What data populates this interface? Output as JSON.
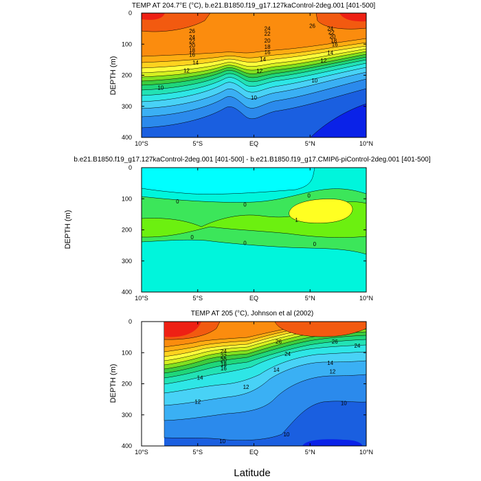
{
  "figure": {
    "xlabel_bottom": "Latitude"
  },
  "chart_data": [
    {
      "type": "heatmap",
      "title": "TEMP AT 204.7°E (°C), b.e21.B1850.f19_g17.127kaControl-2deg.001 [401-500]",
      "ylabel": "DEPTH (m)",
      "xlim": [
        -10,
        10
      ],
      "ylim": [
        400,
        0
      ],
      "xticks": [
        -10,
        -5,
        0,
        5,
        10
      ],
      "xtick_labels": [
        "10°S",
        "5°S",
        "EQ",
        "5°N",
        "10°N"
      ],
      "yticks": [
        0,
        100,
        200,
        300,
        400
      ],
      "ytick_labels": [
        "0",
        "100",
        "200",
        "300",
        "400"
      ],
      "contour_labels": [
        {
          "text": "26",
          "lat": -5.5,
          "depth": 57
        },
        {
          "text": "24",
          "lat": 1.2,
          "depth": 50
        },
        {
          "text": "26",
          "lat": 5.2,
          "depth": 41
        },
        {
          "text": "24",
          "lat": -5.5,
          "depth": 77
        },
        {
          "text": "22",
          "lat": 1.2,
          "depth": 66
        },
        {
          "text": "22",
          "lat": -5.5,
          "depth": 90
        },
        {
          "text": "20",
          "lat": 1.2,
          "depth": 88
        },
        {
          "text": "20",
          "lat": -5.5,
          "depth": 104
        },
        {
          "text": "18",
          "lat": -5.5,
          "depth": 119
        },
        {
          "text": "18",
          "lat": 1.2,
          "depth": 108
        },
        {
          "text": "24",
          "lat": 6.8,
          "depth": 50
        },
        {
          "text": "22",
          "lat": 6.9,
          "depth": 62
        },
        {
          "text": "20",
          "lat": 7.0,
          "depth": 75
        },
        {
          "text": "18",
          "lat": 7.1,
          "depth": 88
        },
        {
          "text": "16",
          "lat": 7.2,
          "depth": 101
        },
        {
          "text": "16",
          "lat": -5.5,
          "depth": 134
        },
        {
          "text": "16",
          "lat": 1.2,
          "depth": 126
        },
        {
          "text": "14",
          "lat": -5.2,
          "depth": 159
        },
        {
          "text": "14",
          "lat": 0.8,
          "depth": 148
        },
        {
          "text": "14",
          "lat": 6.8,
          "depth": 127
        },
        {
          "text": "12",
          "lat": -6.0,
          "depth": 184
        },
        {
          "text": "12",
          "lat": 0.5,
          "depth": 186
        },
        {
          "text": "12",
          "lat": 6.2,
          "depth": 153
        },
        {
          "text": "10",
          "lat": -8.3,
          "depth": 240
        },
        {
          "text": "10",
          "lat": 0.0,
          "depth": 272
        },
        {
          "text": "10",
          "lat": 5.4,
          "depth": 217
        }
      ]
    },
    {
      "type": "heatmap",
      "title": "b.e21.B1850.f19_g17.127kaControl-2deg.001 [401-500] - b.e21.B1850.f19_g17.CMIP6-piControl-2deg.001 [401-500]",
      "ylabel": "DEPTH (m)",
      "xlim": [
        -10,
        10
      ],
      "ylim": [
        400,
        0
      ],
      "xticks": [
        -10,
        -5,
        0,
        5,
        10
      ],
      "xtick_labels": [
        "10°S",
        "5°S",
        "EQ",
        "5°N",
        "10°N"
      ],
      "yticks": [
        0,
        100,
        200,
        300,
        400
      ],
      "ytick_labels": [
        "0",
        "100",
        "200",
        "300",
        "400"
      ],
      "contour_labels": [
        {
          "text": "0",
          "lat": -6.8,
          "depth": 108
        },
        {
          "text": "0",
          "lat": -0.8,
          "depth": 118
        },
        {
          "text": "0",
          "lat": 4.9,
          "depth": 90
        },
        {
          "text": "1",
          "lat": 3.8,
          "depth": 168
        },
        {
          "text": "0",
          "lat": -5.5,
          "depth": 223
        },
        {
          "text": "0",
          "lat": -0.8,
          "depth": 242
        },
        {
          "text": "0",
          "lat": 5.4,
          "depth": 245
        }
      ]
    },
    {
      "type": "heatmap",
      "title": "TEMP AT 205 (°C), Johnson et al (2002)",
      "ylabel": "DEPTH (m)",
      "xlim": [
        -10,
        10
      ],
      "ylim": [
        400,
        0
      ],
      "xticks": [
        -10,
        -5,
        0,
        5,
        10
      ],
      "xtick_labels": [
        "10°S",
        "5°S",
        "EQ",
        "5°N",
        "10°N"
      ],
      "yticks": [
        0,
        100,
        200,
        300,
        400
      ],
      "ytick_labels": [
        "0",
        "100",
        "200",
        "300",
        "400"
      ],
      "contour_labels": [
        {
          "text": "26",
          "lat": 2.2,
          "depth": 64
        },
        {
          "text": "26",
          "lat": 7.2,
          "depth": 64
        },
        {
          "text": "24",
          "lat": -2.7,
          "depth": 95
        },
        {
          "text": "24",
          "lat": 3.0,
          "depth": 104
        },
        {
          "text": "24",
          "lat": 9.2,
          "depth": 77
        },
        {
          "text": "22",
          "lat": -2.7,
          "depth": 110
        },
        {
          "text": "20",
          "lat": -2.7,
          "depth": 124
        },
        {
          "text": "18",
          "lat": -2.7,
          "depth": 137
        },
        {
          "text": "16",
          "lat": -2.7,
          "depth": 150
        },
        {
          "text": "14",
          "lat": -4.8,
          "depth": 180
        },
        {
          "text": "14",
          "lat": 2.0,
          "depth": 155
        },
        {
          "text": "14",
          "lat": 6.8,
          "depth": 133
        },
        {
          "text": "12",
          "lat": -0.7,
          "depth": 210
        },
        {
          "text": "12",
          "lat": 7.0,
          "depth": 160
        },
        {
          "text": "12",
          "lat": -5.0,
          "depth": 257
        },
        {
          "text": "10",
          "lat": 8.0,
          "depth": 262
        },
        {
          "text": "10",
          "lat": 2.9,
          "depth": 362
        },
        {
          "text": "10",
          "lat": -2.8,
          "depth": 384
        }
      ]
    }
  ]
}
